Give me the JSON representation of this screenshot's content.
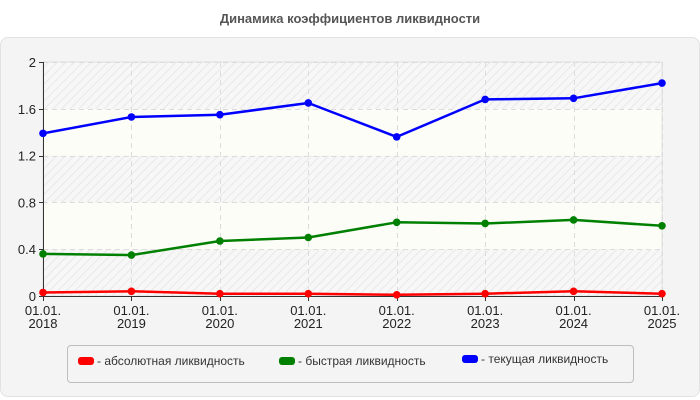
{
  "title": "Динамика коэффициентов ликвидности",
  "chart_data": {
    "type": "line",
    "title": "Динамика коэффициентов ликвидности",
    "xlabel": "",
    "ylabel": "",
    "categories": [
      "01.01. 2018",
      "01.01. 2019",
      "01.01. 2020",
      "01.01. 2021",
      "01.01. 2022",
      "01.01. 2023",
      "01.01. 2024",
      "01.01. 2025"
    ],
    "x_tick_lines": [
      [
        "01.01.",
        "2018"
      ],
      [
        "01.01.",
        "2019"
      ],
      [
        "01.01.",
        "2020"
      ],
      [
        "01.01.",
        "2021"
      ],
      [
        "01.01.",
        "2022"
      ],
      [
        "01.01.",
        "2023"
      ],
      [
        "01.01.",
        "2024"
      ],
      [
        "01.01.",
        "2025"
      ]
    ],
    "yticks": [
      0,
      0.4,
      0.8,
      1.2,
      1.6,
      2
    ],
    "ytick_labels": [
      "0",
      "0.4",
      "0.8",
      "1.2",
      "1.6",
      "2"
    ],
    "ylim": [
      0,
      2
    ],
    "grid": true,
    "legend_position": "bottom",
    "series": [
      {
        "name": "абсолютная ликвидность",
        "color": "#ff0000",
        "values": [
          0.03,
          0.04,
          0.02,
          0.02,
          0.01,
          0.02,
          0.04,
          0.02
        ]
      },
      {
        "name": "быстрая ликвидность",
        "color": "#008000",
        "values": [
          0.36,
          0.35,
          0.47,
          0.5,
          0.63,
          0.62,
          0.65,
          0.6
        ]
      },
      {
        "name": "текущая ликвидность",
        "color": "#0000ff",
        "values": [
          1.39,
          1.53,
          1.55,
          1.65,
          1.36,
          1.68,
          1.69,
          1.82
        ]
      }
    ]
  },
  "legend": [
    {
      "label": "- абсолютная ликвидность",
      "color": "#ff0000"
    },
    {
      "label": "- быстрая ликвидность",
      "color": "#008000"
    },
    {
      "label": "- текущая ликвидность",
      "color": "#0000ff"
    }
  ]
}
